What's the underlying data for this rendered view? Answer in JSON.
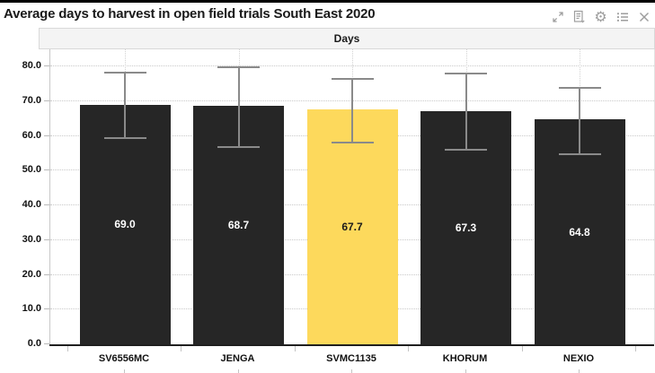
{
  "window": {
    "title": "Average days to harvest in open field trials South East 2020",
    "toolbar": {
      "icons": [
        "expand",
        "export-document",
        "settings",
        "menu-list",
        "close"
      ]
    }
  },
  "panel": {
    "header": "Days"
  },
  "chart_data": {
    "type": "bar",
    "title": "Average days to harvest in open field trials South East 2020",
    "panel_title": "Days",
    "categories": [
      "SV6556MC",
      "JENGA",
      "SVMC1135",
      "KHORUM",
      "NEXIO"
    ],
    "values": [
      69.0,
      68.7,
      67.7,
      67.3,
      64.8
    ],
    "value_labels": [
      "69.0",
      "68.7",
      "67.7",
      "67.3",
      "64.8"
    ],
    "error_high": [
      78.2,
      79.9,
      76.6,
      77.9,
      74.0
    ],
    "error_low": [
      59.3,
      56.9,
      58.1,
      56.1,
      54.8
    ],
    "highlight_index": 2,
    "xlabel": "",
    "ylabel": "",
    "ylim": [
      0,
      85
    ],
    "y_ticks": [
      0,
      10,
      20,
      30,
      40,
      50,
      60,
      70,
      80
    ],
    "y_tick_labels": [
      "0.0",
      "10.0",
      "20.0",
      "30.0",
      "40.0",
      "50.0",
      "60.0",
      "70.0",
      "80.0"
    ],
    "grid": true,
    "legend": "none",
    "colors": {
      "bar": "#262626",
      "highlight": "#FDD95C",
      "error_bar": "#8a8a8a",
      "label_on_dark": "#ffffff",
      "label_on_highlight": "#1a1a1a",
      "gridline": "#c9c9c9"
    }
  }
}
